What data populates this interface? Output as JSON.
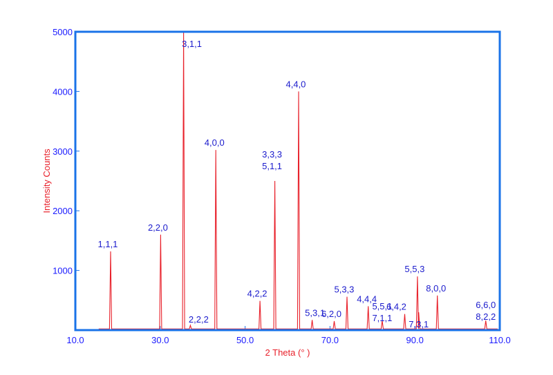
{
  "chart_data": {
    "type": "line",
    "xlabel": "2 Theta (° )",
    "ylabel": "Intensity Counts",
    "xlim": [
      10.0,
      110.0
    ],
    "ylim": [
      0,
      5000
    ],
    "x_ticks": [
      "10.0",
      "30.0",
      "50.0",
      "70.0",
      "90.0",
      "110.0"
    ],
    "y_ticks": [
      "1000",
      "2000",
      "3000",
      "4000",
      "5000"
    ],
    "grid": false,
    "colors": {
      "frame": "#1a73e8",
      "line": "#e8202a",
      "tick_text": "#1a1aff",
      "peak_text": "#1a1acc",
      "axis_title": "#e8202a"
    },
    "series": [
      {
        "peaks": [
          {
            "x": 18.3,
            "y": 1320,
            "label_lines": [
              "1,1,1"
            ]
          },
          {
            "x": 30.1,
            "y": 1600,
            "label_lines": [
              "2,2,0"
            ]
          },
          {
            "x": 35.5,
            "y": 5000,
            "label_lines": [
              "3,1,1"
            ]
          },
          {
            "x": 37.1,
            "y": 80,
            "label_lines": [
              "2,2,2"
            ]
          },
          {
            "x": 43.1,
            "y": 3020,
            "label_lines": [
              "4,0,0"
            ]
          },
          {
            "x": 53.5,
            "y": 490,
            "label_lines": [
              "4,2,2"
            ]
          },
          {
            "x": 57.0,
            "y": 2500,
            "label_lines": [
              "3,3,3",
              "5,1,1"
            ]
          },
          {
            "x": 62.6,
            "y": 4000,
            "label_lines": [
              "4,4,0"
            ]
          },
          {
            "x": 65.8,
            "y": 170,
            "label_lines": [
              "5,3,1"
            ]
          },
          {
            "x": 71.0,
            "y": 150,
            "label_lines": [
              "6,2,0"
            ]
          },
          {
            "x": 74.0,
            "y": 560,
            "label_lines": [
              "5,3,3"
            ]
          },
          {
            "x": 79.0,
            "y": 400,
            "label_lines": [
              "4,4,4"
            ]
          },
          {
            "x": 82.3,
            "y": 160,
            "label_lines": [
              "5,5,1",
              "7,1,1"
            ]
          },
          {
            "x": 87.6,
            "y": 270,
            "label_lines": [
              "6,4,2"
            ]
          },
          {
            "x": 90.6,
            "y": 900,
            "label_lines": [
              "5,5,3"
            ]
          },
          {
            "x": 90.9,
            "y": 300,
            "label_lines": [
              "7,3,1"
            ]
          },
          {
            "x": 95.3,
            "y": 580,
            "label_lines": [
              "8,0,0"
            ]
          },
          {
            "x": 106.7,
            "y": 160,
            "label_lines": [
              "6,6,0",
              "8,2,2"
            ]
          }
        ]
      }
    ]
  }
}
